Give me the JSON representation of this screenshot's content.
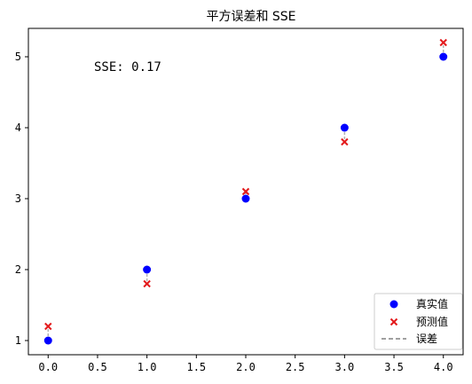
{
  "chart_data": {
    "type": "scatter",
    "title": "平方误差和 SSE",
    "xlabel": "",
    "ylabel": "",
    "xlim": [
      -0.2,
      4.2
    ],
    "ylim": [
      0.8,
      5.4
    ],
    "x_ticks": [
      "0.0",
      "0.5",
      "1.0",
      "1.5",
      "2.0",
      "2.5",
      "3.0",
      "3.5",
      "4.0"
    ],
    "x_tick_values": [
      0.0,
      0.5,
      1.0,
      1.5,
      2.0,
      2.5,
      3.0,
      3.5,
      4.0
    ],
    "y_ticks": [
      "1",
      "2",
      "3",
      "4",
      "5"
    ],
    "y_tick_values": [
      1,
      2,
      3,
      4,
      5
    ],
    "grid": false,
    "legend_position": "lower-right",
    "x": [
      0,
      1,
      2,
      3,
      4
    ],
    "series": [
      {
        "name": "真实值",
        "marker": "circle",
        "color": "#0000ff",
        "values": [
          1.0,
          2.0,
          3.0,
          4.0,
          5.0
        ]
      },
      {
        "name": "预测值",
        "marker": "x",
        "color": "#e31a1c",
        "values": [
          1.2,
          1.8,
          3.1,
          3.8,
          5.2
        ]
      }
    ],
    "error_lines": {
      "name": "误差",
      "style": "dashed",
      "color": "#808080"
    },
    "annotation": "SSE: 0.17"
  }
}
